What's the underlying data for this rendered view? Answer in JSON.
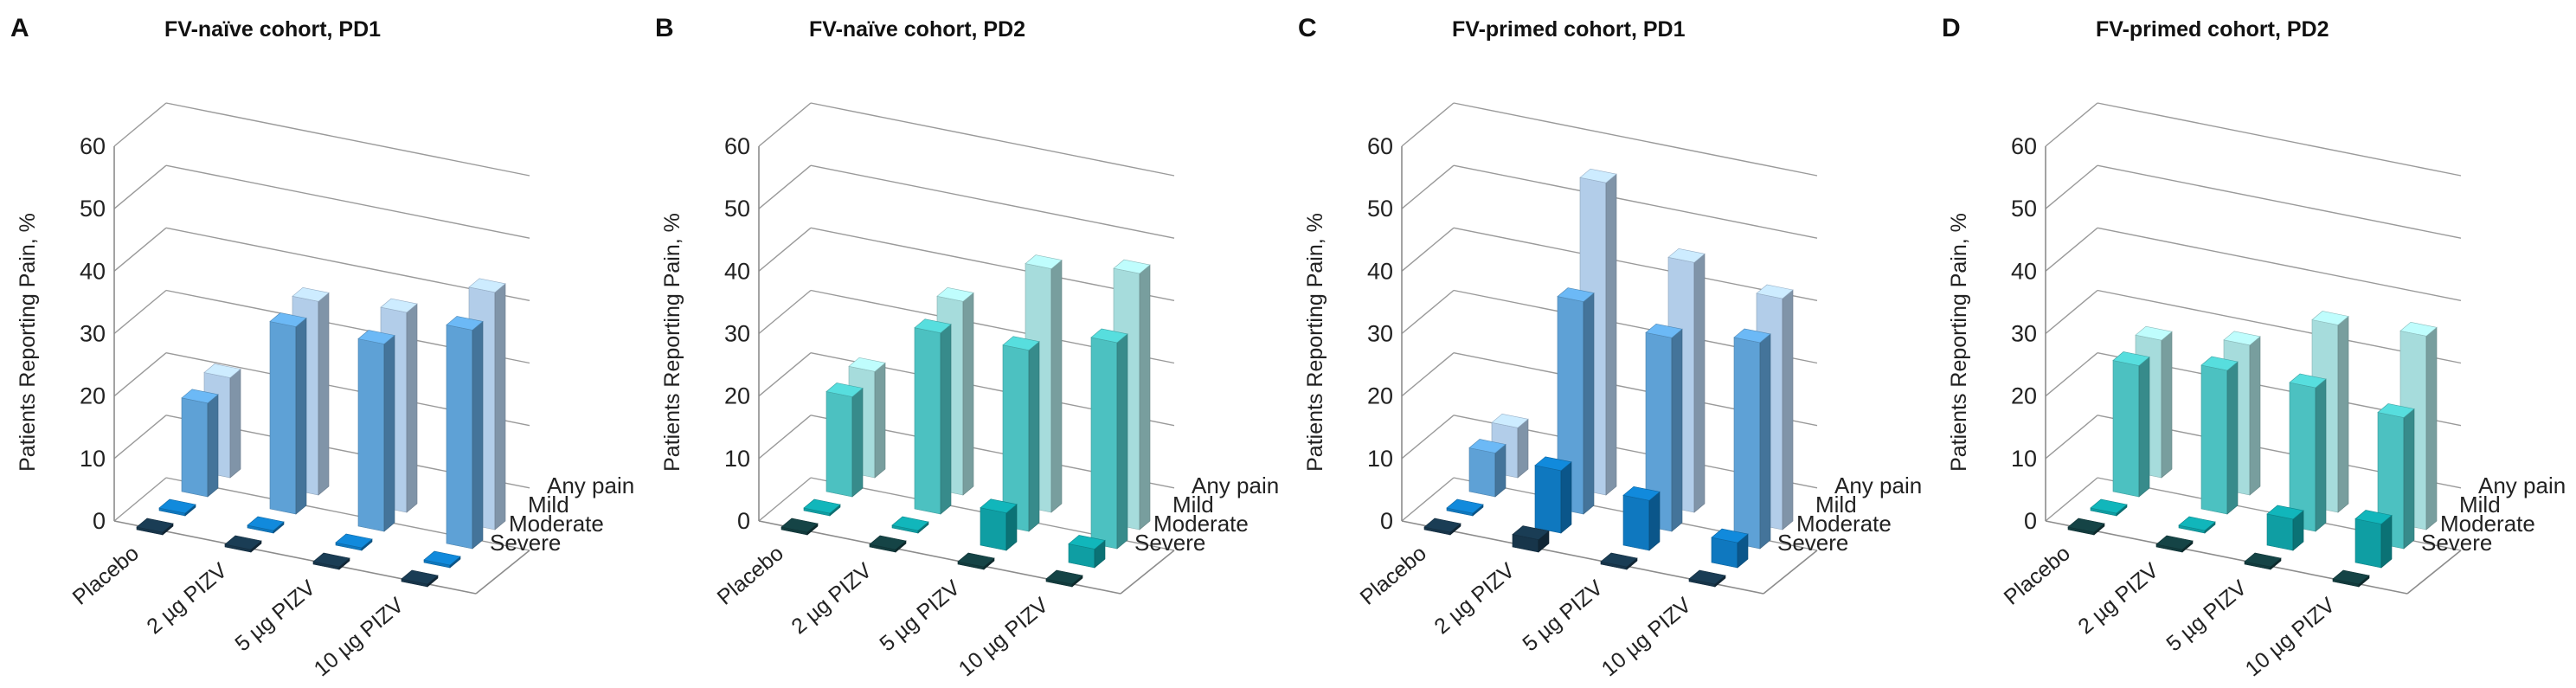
{
  "figure": {
    "ylabel": "Patients Reporting Pain, %",
    "ylim": [
      0,
      60
    ],
    "yticks": [
      "0",
      "10",
      "20",
      "30",
      "40",
      "50",
      "60"
    ],
    "categories": [
      "Placebo",
      "2 µg PIZV",
      "5 µg PIZV",
      "10 µg PIZV"
    ],
    "depth_series": [
      "Any pain",
      "Mild",
      "Moderate",
      "Severe"
    ]
  },
  "chart_data": [
    {
      "letter": "A",
      "title": "FV-naïve cohort, PD1",
      "type": "bar",
      "palette": "blue",
      "ylabel": "Patients Reporting Pain, %",
      "ylim": [
        0,
        60
      ],
      "categories": [
        "Placebo",
        "2 µg PIZV",
        "5 µg PIZV",
        "10 µg PIZV"
      ],
      "series": [
        {
          "name": "Severe",
          "values": [
            0,
            0,
            0,
            0
          ]
        },
        {
          "name": "Moderate",
          "values": [
            0,
            0,
            0,
            0
          ]
        },
        {
          "name": "Mild",
          "values": [
            15,
            30,
            30,
            35
          ]
        },
        {
          "name": "Any pain",
          "values": [
            16,
            31,
            32,
            38
          ]
        }
      ]
    },
    {
      "letter": "B",
      "title": "FV-naïve cohort, PD2",
      "type": "bar",
      "palette": "teal",
      "ylabel": "Patients Reporting Pain, %",
      "ylim": [
        0,
        60
      ],
      "categories": [
        "Placebo",
        "2 µg PIZV",
        "5 µg PIZV",
        "10 µg PIZV"
      ],
      "series": [
        {
          "name": "Severe",
          "values": [
            0,
            0,
            0,
            0
          ]
        },
        {
          "name": "Moderate",
          "values": [
            0,
            0,
            6,
            3
          ]
        },
        {
          "name": "Mild",
          "values": [
            16,
            29,
            29,
            33
          ]
        },
        {
          "name": "Any pain",
          "values": [
            17,
            31,
            39,
            41
          ]
        }
      ]
    },
    {
      "letter": "C",
      "title": "FV-primed cohort, PD1",
      "type": "bar",
      "palette": "blue",
      "ylabel": "Patients Reporting Pain, %",
      "ylim": [
        0,
        60
      ],
      "categories": [
        "Placebo",
        "2 µg PIZV",
        "5 µg PIZV",
        "10 µg PIZV"
      ],
      "series": [
        {
          "name": "Severe",
          "values": [
            0,
            2,
            0,
            0
          ]
        },
        {
          "name": "Moderate",
          "values": [
            0,
            10,
            8,
            4
          ]
        },
        {
          "name": "Mild",
          "values": [
            7,
            34,
            31,
            33
          ]
        },
        {
          "name": "Any pain",
          "values": [
            8,
            50,
            40,
            37
          ]
        }
      ]
    },
    {
      "letter": "D",
      "title": "FV-primed cohort, PD2",
      "type": "bar",
      "palette": "teal",
      "ylabel": "Patients Reporting Pain, %",
      "ylim": [
        0,
        60
      ],
      "categories": [
        "Placebo",
        "2 µg PIZV",
        "5 µg PIZV",
        "10 µg PIZV"
      ],
      "series": [
        {
          "name": "Severe",
          "values": [
            0,
            0,
            0,
            0
          ]
        },
        {
          "name": "Moderate",
          "values": [
            0,
            0,
            5,
            7
          ]
        },
        {
          "name": "Mild",
          "values": [
            21,
            23,
            23,
            21
          ]
        },
        {
          "name": "Any pain",
          "values": [
            22,
            24,
            30,
            31
          ]
        }
      ]
    }
  ],
  "palettes": {
    "blue": {
      "Severe": "#17354a",
      "Moderate": "#0f78bf",
      "Mild": "#5ea1d6",
      "Any pain": "#b2cde9"
    },
    "teal": {
      "Severe": "#123b3d",
      "Moderate": "#0f9ea3",
      "Mild": "#4cc1c1",
      "Any pain": "#a6dcdc"
    }
  }
}
